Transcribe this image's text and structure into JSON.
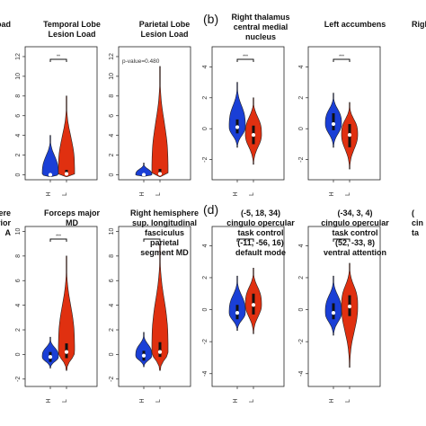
{
  "figure": {
    "panel_labels": [
      "(b)",
      "(d)"
    ]
  },
  "chart_data": [
    {
      "type": "violin",
      "row": 0,
      "col": 0,
      "title_lines": [
        "oad"
      ],
      "categories": [],
      "series": [],
      "yticks": [],
      "ylim": [
        0,
        1
      ],
      "significance": "",
      "annotation": ""
    },
    {
      "type": "violin",
      "row": 0,
      "col": 1,
      "title_lines": [
        "Temporal Lobe",
        "Lesion Load"
      ],
      "categories": [
        "H",
        "L"
      ],
      "series": [
        {
          "name": "H",
          "color": "#1a3fd6",
          "min": -0.2,
          "max": 4.0,
          "q1": 0,
          "q3": 0,
          "median": 0
        },
        {
          "name": "L",
          "color": "#e03010",
          "min": -0.2,
          "max": 8.0,
          "q1": 0,
          "q3": 0.5,
          "median": 0.1
        }
      ],
      "yticks": [
        0,
        2,
        4,
        6,
        8,
        10,
        12
      ],
      "ylim": [
        -0.5,
        13
      ],
      "significance": "**",
      "annotation": ""
    },
    {
      "type": "violin",
      "row": 0,
      "col": 2,
      "title_lines": [
        "Parietal Lobe",
        "Lesion Load"
      ],
      "categories": [
        "H",
        "L"
      ],
      "series": [
        {
          "name": "H",
          "color": "#1a3fd6",
          "min": -0.2,
          "max": 1.2,
          "q1": 0,
          "q3": 0,
          "median": 0
        },
        {
          "name": "L",
          "color": "#e03010",
          "min": -0.2,
          "max": 11.0,
          "q1": 0,
          "q3": 0.6,
          "median": 0.1
        }
      ],
      "yticks": [
        0,
        2,
        4,
        6,
        8,
        10,
        12
      ],
      "ylim": [
        -0.5,
        13
      ],
      "significance": "",
      "annotation": "p-value=0.480"
    },
    {
      "type": "violin",
      "row": 0,
      "col": 3,
      "title_lines": [
        "Right thalamus",
        "central medial",
        "nucleus"
      ],
      "categories": [
        "H",
        "L"
      ],
      "series": [
        {
          "name": "H",
          "color": "#1a3fd6",
          "min": -1.2,
          "max": 3.0,
          "q1": -0.3,
          "q3": 0.6,
          "median": 0.1
        },
        {
          "name": "L",
          "color": "#e03010",
          "min": -2.3,
          "max": 2.0,
          "q1": -1.0,
          "q3": 0.2,
          "median": -0.4
        }
      ],
      "yticks": [
        -2,
        0,
        2,
        4
      ],
      "ylim": [
        -3.3,
        5.3
      ],
      "significance": "***",
      "annotation": ""
    },
    {
      "type": "violin",
      "row": 0,
      "col": 4,
      "title_lines": [
        "Left accumbens"
      ],
      "categories": [
        "H",
        "L"
      ],
      "series": [
        {
          "name": "H",
          "color": "#1a3fd6",
          "min": -1.2,
          "max": 2.3,
          "q1": -0.1,
          "q3": 1.0,
          "median": 0.3
        },
        {
          "name": "L",
          "color": "#e03010",
          "min": -2.6,
          "max": 1.7,
          "q1": -1.2,
          "q3": 0.3,
          "median": -0.4
        }
      ],
      "yticks": [
        -2,
        0,
        2,
        4
      ],
      "ylim": [
        -3.3,
        5.3
      ],
      "significance": "***",
      "annotation": ""
    },
    {
      "type": "violin",
      "row": 0,
      "col": 5,
      "title_lines": [
        "Righ"
      ],
      "categories": [],
      "series": [],
      "yticks": [],
      "ylim": [
        0,
        1
      ],
      "significance": "",
      "annotation": ""
    },
    {
      "type": "violin",
      "row": 1,
      "col": 0,
      "title_lines": [
        "here",
        "terior",
        "A"
      ],
      "categories": [],
      "series": [],
      "yticks": [],
      "ylim": [
        0,
        1
      ],
      "significance": "",
      "annotation": ""
    },
    {
      "type": "violin",
      "row": 1,
      "col": 1,
      "title_lines": [
        "Forceps major",
        "MD"
      ],
      "categories": [
        "H",
        "L"
      ],
      "series": [
        {
          "name": "H",
          "color": "#1a3fd6",
          "min": -1.1,
          "max": 1.4,
          "q1": -0.6,
          "q3": 0.2,
          "median": -0.2
        },
        {
          "name": "L",
          "color": "#e03010",
          "min": -1.3,
          "max": 8.0,
          "q1": -0.3,
          "q3": 0.9,
          "median": 0.2
        }
      ],
      "yticks": [
        -2,
        0,
        2,
        4,
        6,
        8,
        10
      ],
      "ylim": [
        -2.6,
        10.4
      ],
      "significance": "***",
      "annotation": ""
    },
    {
      "type": "violin",
      "row": 1,
      "col": 2,
      "title_lines": [
        "Right hemisphere",
        "sup. longitudinal",
        "fasciculus",
        "parietal",
        "segment MD"
      ],
      "categories": [
        "H",
        "L"
      ],
      "series": [
        {
          "name": "H",
          "color": "#1a3fd6",
          "min": -1.0,
          "max": 1.8,
          "q1": -0.5,
          "q3": 0.3,
          "median": -0.1
        },
        {
          "name": "L",
          "color": "#e03010",
          "min": -1.3,
          "max": 9.0,
          "q1": -0.2,
          "q3": 1.0,
          "median": 0.2
        }
      ],
      "yticks": [
        -2,
        0,
        2,
        4,
        6,
        8,
        10
      ],
      "ylim": [
        -2.6,
        10.4
      ],
      "significance": "***",
      "annotation": ""
    },
    {
      "type": "violin",
      "row": 1,
      "col": 3,
      "title_lines": [
        "(-5, 18, 34)",
        "cingulo opercular",
        "task control",
        "(-11, -56, 16)",
        "default mode"
      ],
      "categories": [
        "H",
        "L"
      ],
      "series": [
        {
          "name": "H",
          "color": "#1a3fd6",
          "min": -1.3,
          "max": 2.1,
          "q1": -0.6,
          "q3": 0.3,
          "median": -0.2
        },
        {
          "name": "L",
          "color": "#e03010",
          "min": -1.5,
          "max": 2.6,
          "q1": -0.3,
          "q3": 1.0,
          "median": 0.3
        }
      ],
      "yticks": [
        -4,
        -2,
        0,
        2,
        4
      ],
      "ylim": [
        -4.8,
        5.2
      ],
      "significance": "***",
      "annotation": ""
    },
    {
      "type": "violin",
      "row": 1,
      "col": 4,
      "title_lines": [
        "(-34, 3, 4)",
        "cingulo opercular",
        "task control",
        "(52, -33, 8)",
        "ventral attention"
      ],
      "categories": [
        "H",
        "L"
      ],
      "series": [
        {
          "name": "H",
          "color": "#1a3fd6",
          "min": -1.6,
          "max": 2.1,
          "q1": -0.6,
          "q3": 0.4,
          "median": -0.2
        },
        {
          "name": "L",
          "color": "#e03010",
          "min": -3.6,
          "max": 2.9,
          "q1": -0.4,
          "q3": 0.9,
          "median": 0.2
        }
      ],
      "yticks": [
        -4,
        -2,
        0,
        2,
        4
      ],
      "ylim": [
        -4.8,
        5.2
      ],
      "significance": "***",
      "annotation": ""
    },
    {
      "type": "violin",
      "row": 1,
      "col": 5,
      "title_lines": [
        "(",
        "cin",
        "ta"
      ],
      "categories": [],
      "series": [],
      "yticks": [],
      "ylim": [
        0,
        1
      ],
      "significance": "",
      "annotation": ""
    }
  ]
}
